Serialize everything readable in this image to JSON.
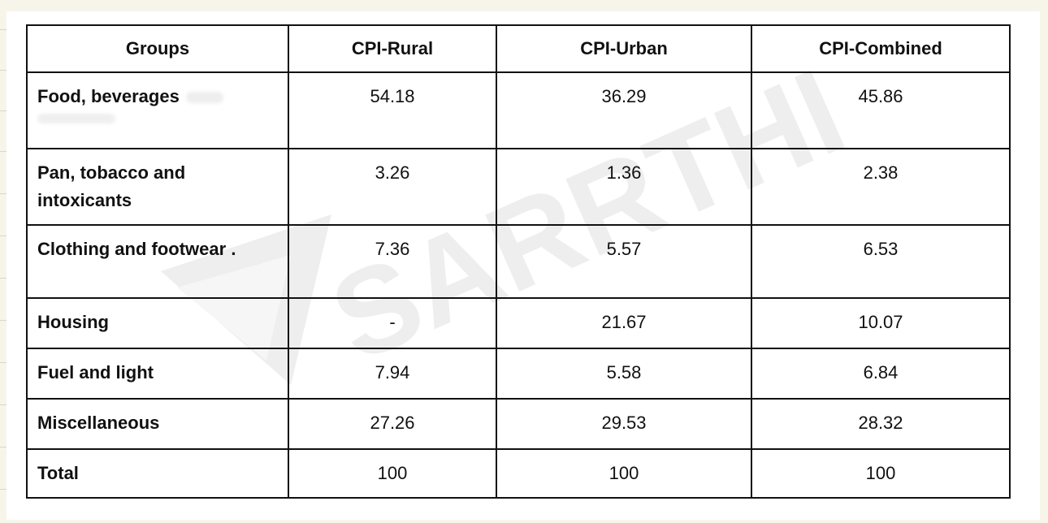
{
  "table": {
    "headers": [
      "Groups",
      "CPI-Rural",
      "CPI-Urban",
      "CPI-Combined"
    ],
    "rows": [
      {
        "group": "Food, beverages",
        "rural": "54.18",
        "urban": "36.29",
        "combined": "45.86"
      },
      {
        "group": "Pan, tobacco and intoxicants",
        "rural": "3.26",
        "urban": "1.36",
        "combined": "2.38"
      },
      {
        "group": "Clothing and footwear .",
        "rural": "7.36",
        "urban": "5.57",
        "combined": "6.53"
      },
      {
        "group": "Housing",
        "rural": "-",
        "urban": "21.67",
        "combined": "10.07"
      },
      {
        "group": "Fuel and light",
        "rural": "7.94",
        "urban": "5.58",
        "combined": "6.84"
      },
      {
        "group": "Miscellaneous",
        "rural": "27.26",
        "urban": "29.53",
        "combined": "28.32"
      },
      {
        "group": "Total",
        "rural": "100",
        "urban": "100",
        "combined": "100"
      }
    ]
  },
  "watermark": {
    "text": "SARRTHI",
    "color": "#ececec"
  }
}
